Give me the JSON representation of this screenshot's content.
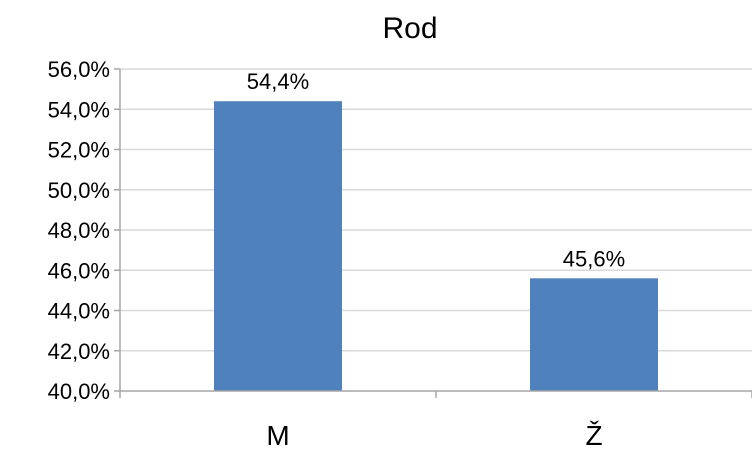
{
  "chart_data": {
    "type": "bar",
    "title": "Rod",
    "categories": [
      "M",
      "Ž"
    ],
    "values": [
      54.4,
      45.6
    ],
    "value_labels": [
      "54,4%",
      "45,6%"
    ],
    "xlabel": "",
    "ylabel": "",
    "ylim": [
      40,
      56
    ],
    "yticks": [
      40,
      42,
      44,
      46,
      48,
      50,
      52,
      54,
      56
    ],
    "ytick_labels": [
      "40,0%",
      "42,0%",
      "44,0%",
      "46,0%",
      "48,0%",
      "50,0%",
      "52,0%",
      "54,0%",
      "56,0%"
    ],
    "grid": true,
    "legend": "none",
    "bar_color": "#4f81bd"
  }
}
